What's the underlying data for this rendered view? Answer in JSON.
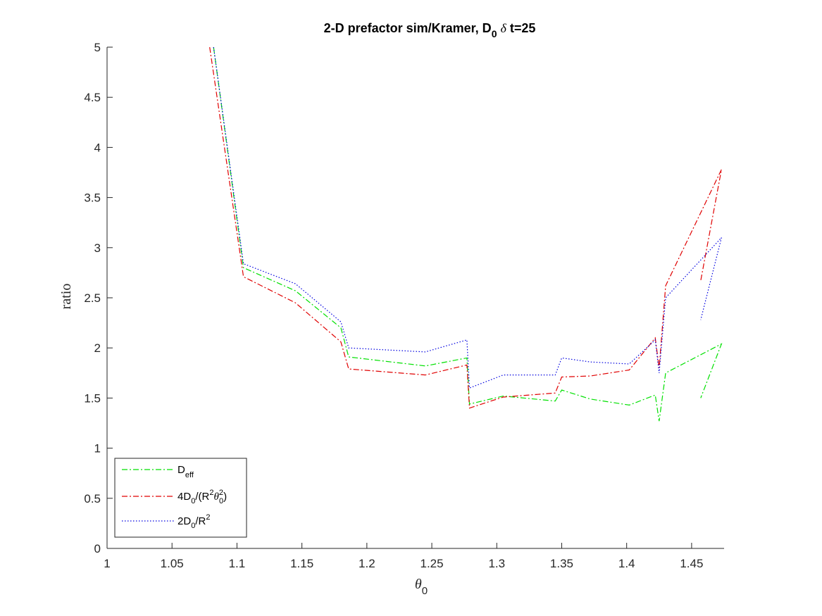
{
  "chart_data": {
    "type": "line",
    "title_main": "2-D prefactor sim/Kramer, D",
    "title_sub": "0",
    "title_delta": "δ",
    "title_rest": " t=25",
    "xlabel_symbol": "θ",
    "xlabel_sub": "0",
    "ylabel": "ratio",
    "xlim": [
      1,
      1.475
    ],
    "ylim": [
      0,
      5
    ],
    "xticks": [
      1,
      1.05,
      1.1,
      1.15,
      1.2,
      1.25,
      1.3,
      1.35,
      1.4,
      1.45
    ],
    "xtick_labels": [
      "1",
      "1.05",
      "1.1",
      "1.15",
      "1.2",
      "1.25",
      "1.3",
      "1.35",
      "1.4",
      "1.45"
    ],
    "yticks": [
      0,
      0.5,
      1,
      1.5,
      2,
      2.5,
      3,
      3.5,
      4,
      4.5,
      5
    ],
    "ytick_labels": [
      "0",
      "0.5",
      "1",
      "1.5",
      "2",
      "2.5",
      "3",
      "3.5",
      "4",
      "4.5",
      "5"
    ],
    "legend_position": "bottom-left",
    "series": [
      {
        "key": "deff",
        "color": "#00e000",
        "dash": "8,3,2,3",
        "label_main": "D",
        "label_sub": "eff",
        "points": [
          [
            1.082,
            5.0
          ],
          [
            1.105,
            2.8
          ],
          [
            1.145,
            2.57
          ],
          [
            1.18,
            2.2
          ],
          [
            1.186,
            1.91
          ],
          [
            1.245,
            1.82
          ],
          [
            1.277,
            1.9
          ],
          [
            1.279,
            1.44
          ],
          [
            1.305,
            1.52
          ],
          [
            1.345,
            1.47
          ],
          [
            1.35,
            1.58
          ],
          [
            1.372,
            1.49
          ],
          [
            1.402,
            1.43
          ],
          [
            1.422,
            1.53
          ],
          [
            1.425,
            1.27
          ],
          [
            1.43,
            1.75
          ],
          [
            1.473,
            2.04
          ],
          [
            1.457,
            1.5
          ]
        ]
      },
      {
        "key": "four_d0",
        "color": "#e00000",
        "dash": "8,3,2,3",
        "label_parts": [
          "4D",
          "0",
          "/(R",
          "2",
          "θ",
          "2",
          "0",
          ")"
        ],
        "points": [
          [
            1.079,
            5.0
          ],
          [
            1.105,
            2.71
          ],
          [
            1.145,
            2.45
          ],
          [
            1.18,
            2.06
          ],
          [
            1.186,
            1.79
          ],
          [
            1.245,
            1.73
          ],
          [
            1.277,
            1.83
          ],
          [
            1.279,
            1.4
          ],
          [
            1.305,
            1.51
          ],
          [
            1.345,
            1.55
          ],
          [
            1.35,
            1.71
          ],
          [
            1.372,
            1.72
          ],
          [
            1.402,
            1.78
          ],
          [
            1.422,
            2.1
          ],
          [
            1.425,
            1.8
          ],
          [
            1.43,
            2.62
          ],
          [
            1.473,
            3.78
          ],
          [
            1.457,
            2.67
          ]
        ]
      },
      {
        "key": "two_d0",
        "color": "#0000e0",
        "dash": "1.5,2.5",
        "label_parts": [
          "2D",
          "0",
          "/R",
          "2"
        ],
        "points": [
          [
            1.082,
            5.0
          ],
          [
            1.105,
            2.84
          ],
          [
            1.145,
            2.64
          ],
          [
            1.18,
            2.26
          ],
          [
            1.186,
            2.0
          ],
          [
            1.245,
            1.96
          ],
          [
            1.277,
            2.08
          ],
          [
            1.279,
            1.6
          ],
          [
            1.305,
            1.73
          ],
          [
            1.345,
            1.73
          ],
          [
            1.35,
            1.9
          ],
          [
            1.372,
            1.86
          ],
          [
            1.402,
            1.84
          ],
          [
            1.422,
            2.08
          ],
          [
            1.425,
            1.75
          ],
          [
            1.43,
            2.5
          ],
          [
            1.473,
            3.1
          ],
          [
            1.457,
            2.28
          ]
        ]
      }
    ]
  }
}
